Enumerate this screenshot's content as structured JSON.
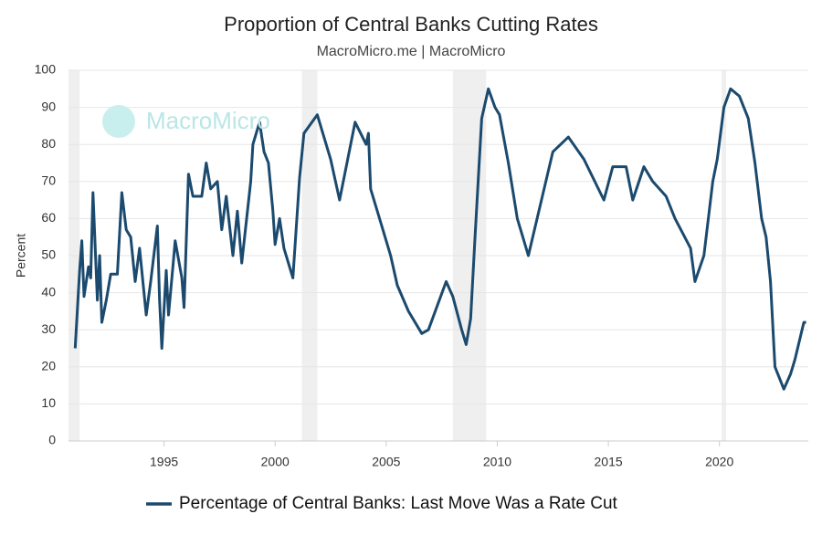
{
  "chart_data": {
    "type": "line",
    "title": "Proportion of Central Banks Cutting Rates",
    "subtitle": "MacroMicro.me | MacroMicro",
    "watermark": "MacroMicro",
    "y_label": "Percent",
    "x": [
      1991.0,
      1991.2,
      1991.3,
      1991.4,
      1991.6,
      1991.7,
      1991.8,
      1992.0,
      1992.1,
      1992.2,
      1992.4,
      1992.6,
      1992.9,
      1993.1,
      1993.3,
      1993.5,
      1993.7,
      1993.9,
      1994.2,
      1994.4,
      1994.7,
      1994.8,
      1994.9,
      1995.1,
      1995.2,
      1995.4,
      1995.5,
      1995.8,
      1995.9,
      1996.1,
      1996.3,
      1996.7,
      1996.9,
      1997.1,
      1997.4,
      1997.6,
      1997.8,
      1998.1,
      1998.3,
      1998.5,
      1998.9,
      1999.0,
      1999.3,
      1999.5,
      1999.7,
      1999.9,
      2000.0,
      2000.2,
      2000.4,
      2000.8,
      2001.1,
      2001.3,
      2001.9,
      2002.5,
      2002.9,
      2003.6,
      2004.1,
      2004.2,
      2004.3,
      2004.8,
      2005.2,
      2005.5,
      2006.0,
      2006.6,
      2006.9,
      2007.7,
      2008.0,
      2008.4,
      2008.6,
      2008.8,
      2009.0,
      2009.3,
      2009.6,
      2009.9,
      2010.1,
      2010.5,
      2010.9,
      2011.4,
      2012.5,
      2013.2,
      2013.9,
      2014.8,
      2015.2,
      2015.8,
      2016.1,
      2016.6,
      2017.0,
      2017.6,
      2018.0,
      2018.7,
      2018.9,
      2019.3,
      2019.7,
      2019.9,
      2020.2,
      2020.5,
      2020.9,
      2021.3,
      2021.6,
      2021.9,
      2022.1,
      2022.3,
      2022.5,
      2022.9,
      2023.2,
      2023.4,
      2023.8,
      2023.9
    ],
    "series": [
      {
        "name": "Percentage of Central Banks: Last Move Was a Rate Cut",
        "color": "#1b4a6e",
        "values": [
          25,
          46,
          54,
          39,
          47,
          44,
          67,
          38,
          50,
          32,
          38,
          45,
          45,
          67,
          57,
          55,
          43,
          52,
          34,
          43,
          58,
          38,
          25,
          46,
          34,
          47,
          54,
          44,
          36,
          72,
          66,
          66,
          75,
          68,
          70,
          57,
          66,
          50,
          62,
          48,
          70,
          80,
          86,
          78,
          75,
          62,
          53,
          60,
          52,
          44,
          71,
          83,
          88,
          76,
          65,
          86,
          80,
          83,
          68,
          58,
          50,
          42,
          35,
          29,
          30,
          43,
          39,
          30,
          26,
          33,
          55,
          87,
          95,
          90,
          88,
          75,
          60,
          50,
          78,
          82,
          76,
          65,
          74,
          74,
          65,
          74,
          70,
          66,
          60,
          52,
          43,
          50,
          70,
          76,
          90,
          95,
          93,
          87,
          75,
          60,
          55,
          43,
          20,
          14,
          18,
          22,
          32,
          32
        ]
      }
    ],
    "shaded_ranges": [
      [
        1990.7,
        1991.2
      ],
      [
        2001.2,
        2001.9
      ],
      [
        2008.0,
        2009.5
      ],
      [
        2020.1,
        2020.3
      ]
    ],
    "shade_color": "#efefef",
    "xlim": [
      1990.7,
      2024.0
    ],
    "xticks": [
      1995,
      2000,
      2005,
      2010,
      2015,
      2020
    ],
    "ylim": [
      0,
      100
    ],
    "yticks": [
      0,
      10,
      20,
      30,
      40,
      50,
      60,
      70,
      80,
      90,
      100
    ],
    "grid": true,
    "legend": "bottom"
  }
}
